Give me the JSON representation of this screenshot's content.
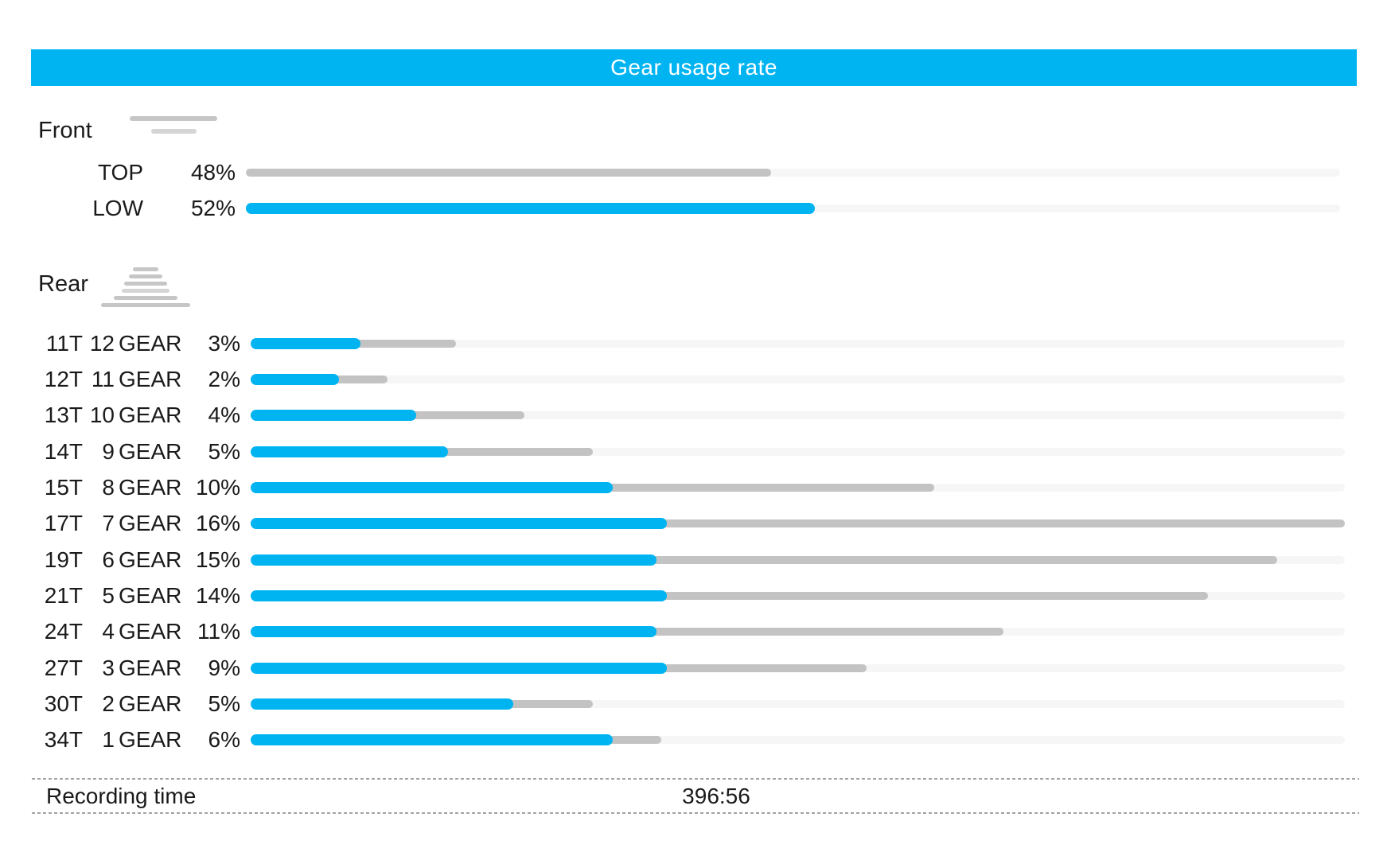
{
  "title": "Gear usage rate",
  "colors": {
    "accent_cyan": "#00b4f2",
    "bar_gray": "#c3c3c3",
    "bar_track": "#f6f6f6",
    "title_text": "#ffffff",
    "text": "#1a1a1a"
  },
  "front": {
    "label": "Front",
    "icon": "front-chainrings-icon",
    "rows": [
      {
        "label": "TOP",
        "pct": "48%",
        "value_pct_of_track": 48.0,
        "bar_color": "gray"
      },
      {
        "label": "LOW",
        "pct": "52%",
        "value_pct_of_track": 52.0,
        "bar_color": "blue"
      }
    ]
  },
  "rear": {
    "label": "Rear",
    "icon": "rear-cassette-icon",
    "gear_suffix": "GEAR",
    "rows": [
      {
        "teeth": "11T",
        "gear": "12",
        "pct": "3%",
        "bar_total_pct_of_track": 18.8,
        "bar_blue_pct_of_track": 10.0
      },
      {
        "teeth": "12T",
        "gear": "11",
        "pct": "2%",
        "bar_total_pct_of_track": 12.5,
        "bar_blue_pct_of_track": 8.1
      },
      {
        "teeth": "13T",
        "gear": "10",
        "pct": "4%",
        "bar_total_pct_of_track": 25.0,
        "bar_blue_pct_of_track": 15.1
      },
      {
        "teeth": "14T",
        "gear": "9",
        "pct": "5%",
        "bar_total_pct_of_track": 31.3,
        "bar_blue_pct_of_track": 18.0
      },
      {
        "teeth": "15T",
        "gear": "8",
        "pct": "10%",
        "bar_total_pct_of_track": 62.5,
        "bar_blue_pct_of_track": 33.1
      },
      {
        "teeth": "17T",
        "gear": "7",
        "pct": "16%",
        "bar_total_pct_of_track": 100.0,
        "bar_blue_pct_of_track": 38.0
      },
      {
        "teeth": "19T",
        "gear": "6",
        "pct": "15%",
        "bar_total_pct_of_track": 93.8,
        "bar_blue_pct_of_track": 37.1
      },
      {
        "teeth": "21T",
        "gear": "5",
        "pct": "14%",
        "bar_total_pct_of_track": 87.5,
        "bar_blue_pct_of_track": 38.0
      },
      {
        "teeth": "24T",
        "gear": "4",
        "pct": "11%",
        "bar_total_pct_of_track": 68.8,
        "bar_blue_pct_of_track": 37.1
      },
      {
        "teeth": "27T",
        "gear": "3",
        "pct": "9%",
        "bar_total_pct_of_track": 56.3,
        "bar_blue_pct_of_track": 38.0
      },
      {
        "teeth": "30T",
        "gear": "2",
        "pct": "5%",
        "bar_total_pct_of_track": 31.3,
        "bar_blue_pct_of_track": 24.0
      },
      {
        "teeth": "34T",
        "gear": "1",
        "pct": "6%",
        "bar_total_pct_of_track": 37.5,
        "bar_blue_pct_of_track": 33.1
      }
    ]
  },
  "footer": {
    "label": "Recording time",
    "value": "396:56"
  },
  "chart_data": {
    "type": "bar",
    "title": "Gear usage rate",
    "orientation": "horizontal",
    "groups": [
      {
        "name": "Front",
        "categories": [
          "TOP",
          "LOW"
        ],
        "values_pct": [
          48,
          52
        ],
        "bar_colors": [
          "gray",
          "cyan"
        ],
        "scale_note": "bar length = value% of full track width"
      },
      {
        "name": "Rear",
        "categories": [
          "11T 12GEAR",
          "12T 11GEAR",
          "13T 10GEAR",
          "14T 9GEAR",
          "15T 8GEAR",
          "17T 7GEAR",
          "19T 6GEAR",
          "21T 5GEAR",
          "24T 4GEAR",
          "27T 3GEAR",
          "30T 2GEAR",
          "34T 1GEAR"
        ],
        "values_pct": [
          3,
          2,
          4,
          5,
          10,
          16,
          15,
          14,
          11,
          9,
          5,
          6
        ],
        "blue_segment_fraction_of_bar": [
          0.53,
          0.65,
          0.6,
          0.58,
          0.53,
          0.38,
          0.4,
          0.43,
          0.54,
          0.68,
          0.77,
          0.88
        ],
        "scale_note": "bar length normalized so max value (16%) fills track; each bar split into cyan (left) and gray (right) segments"
      }
    ],
    "legend": "none",
    "grid": "off",
    "footer": {
      "label": "Recording time",
      "value": "396:56"
    }
  }
}
